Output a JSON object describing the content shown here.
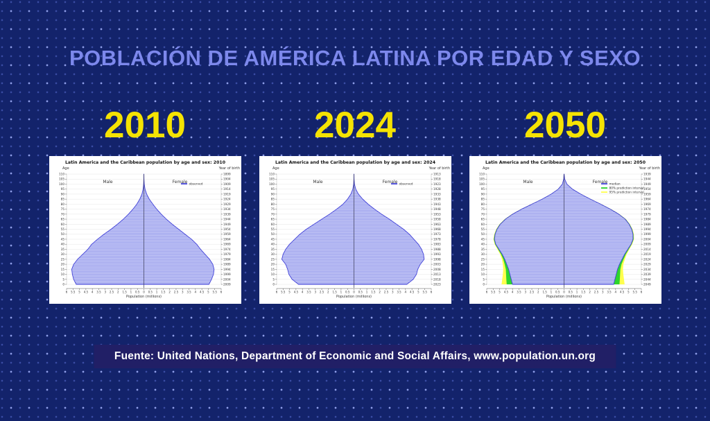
{
  "page": {
    "title": "POBLACIÓN DE AMÉRICA LATINA POR EDAD Y SEXO",
    "source": "Fuente: United Nations, Department of Economic and Social Affairs, www.population.un.org"
  },
  "colors": {
    "background": "#13236b",
    "title_text": "#7d88ec",
    "year_text": "#f5e303",
    "footer_bg": "#211f66",
    "median": "#4343d8",
    "fill": "#c9ccf6",
    "stripe": "#8a90ea",
    "pi80": "#2ed52e",
    "pi95": "#ffff4d"
  },
  "years": [
    "2010",
    "2024",
    "2050"
  ],
  "chart_data": [
    {
      "type": "area",
      "year": "2010",
      "title": "Latin America and the Caribbean population by age and sex: 2010",
      "xlabel": "Population (millions)",
      "left_axis_label": "Age",
      "right_axis_label": "Year of birth",
      "male_label": "Male",
      "female_label": "Female",
      "legend": [
        {
          "label": "observed",
          "color": "#4343d8"
        }
      ],
      "xlim": [
        -6,
        6
      ],
      "x_ticks": [
        "6",
        "5.5",
        "5",
        "4.5",
        "4",
        "3.5",
        "3",
        "2.5",
        "2",
        "1.5",
        "1",
        "0.5",
        "0",
        "0.5",
        "1",
        "1.5",
        "2",
        "2.5",
        "3",
        "3.5",
        "4",
        "4.5",
        "5",
        "5.5",
        "6"
      ],
      "ylim": [
        0,
        110
      ],
      "grid": true,
      "legend_position": "top-right",
      "ages": [
        0,
        5,
        10,
        15,
        20,
        25,
        30,
        35,
        40,
        45,
        50,
        55,
        60,
        65,
        70,
        75,
        80,
        85,
        90,
        95,
        100,
        105,
        110
      ],
      "birth_years": [
        2009,
        2004,
        1999,
        1994,
        1989,
        1984,
        1979,
        1974,
        1969,
        1964,
        1959,
        1954,
        1949,
        1944,
        1939,
        1934,
        1929,
        1924,
        1919,
        1914,
        1909,
        1904,
        1899
      ],
      "male": [
        5.25,
        5.45,
        5.55,
        5.6,
        5.45,
        5.15,
        4.75,
        4.35,
        4.05,
        3.6,
        3.1,
        2.55,
        2.05,
        1.6,
        1.2,
        0.85,
        0.55,
        0.32,
        0.15,
        0.06,
        0.02,
        0.005,
        0.001
      ],
      "female": [
        5.05,
        5.25,
        5.4,
        5.45,
        5.35,
        5.1,
        4.75,
        4.4,
        4.1,
        3.7,
        3.2,
        2.7,
        2.2,
        1.75,
        1.35,
        1.0,
        0.7,
        0.42,
        0.22,
        0.09,
        0.03,
        0.008,
        0.001
      ]
    },
    {
      "type": "area",
      "year": "2024",
      "title": "Latin America and the Caribbean population by age and sex: 2024",
      "xlabel": "Population (millions)",
      "left_axis_label": "Age",
      "right_axis_label": "Year of birth",
      "male_label": "Male",
      "female_label": "Female",
      "legend": [
        {
          "label": "observed",
          "color": "#4343d8"
        }
      ],
      "xlim": [
        -6,
        6
      ],
      "x_ticks": [
        "6",
        "5.5",
        "5",
        "4.5",
        "4",
        "3.5",
        "3",
        "2.5",
        "2",
        "1.5",
        "1",
        "0.5",
        "0",
        "0.5",
        "1",
        "1.5",
        "2",
        "2.5",
        "3",
        "3.5",
        "4",
        "4.5",
        "5",
        "5.5",
        "6"
      ],
      "ylim": [
        0,
        110
      ],
      "grid": true,
      "legend_position": "top-right",
      "ages": [
        0,
        5,
        10,
        15,
        20,
        25,
        30,
        35,
        40,
        45,
        50,
        55,
        60,
        65,
        70,
        75,
        80,
        85,
        90,
        95,
        100,
        105,
        110
      ],
      "birth_years": [
        2023,
        2018,
        2013,
        2008,
        2003,
        1998,
        1993,
        1988,
        1983,
        1978,
        1973,
        1968,
        1963,
        1958,
        1953,
        1948,
        1943,
        1938,
        1933,
        1928,
        1923,
        1918,
        1913
      ],
      "male": [
        4.3,
        4.8,
        5.05,
        5.15,
        5.3,
        5.6,
        5.5,
        5.3,
        5.0,
        4.6,
        4.2,
        3.7,
        3.1,
        2.5,
        1.9,
        1.35,
        0.85,
        0.5,
        0.24,
        0.09,
        0.025,
        0.005,
        0.001
      ],
      "female": [
        4.1,
        4.6,
        4.85,
        4.95,
        5.15,
        5.45,
        5.4,
        5.25,
        5.0,
        4.65,
        4.3,
        3.85,
        3.3,
        2.75,
        2.15,
        1.6,
        1.1,
        0.68,
        0.35,
        0.14,
        0.04,
        0.008,
        0.001
      ]
    },
    {
      "type": "area",
      "year": "2050",
      "title": "Latin America and the Caribbean population by age and sex: 2050",
      "xlabel": "Population (millions)",
      "left_axis_label": "Age",
      "right_axis_label": "Year of birth",
      "male_label": "Male",
      "female_label": "Female",
      "legend": [
        {
          "label": "median",
          "color": "#4343d8"
        },
        {
          "label": "80% prediction interval",
          "color": "#2ed52e"
        },
        {
          "label": "95% prediction interval",
          "color": "#ffff4d"
        }
      ],
      "xlim": [
        -6,
        6
      ],
      "x_ticks": [
        "6",
        "5.5",
        "5",
        "4.5",
        "4",
        "3.5",
        "3",
        "2.5",
        "2",
        "1.5",
        "1",
        "0.5",
        "0",
        "0.5",
        "1",
        "1.5",
        "2",
        "2.5",
        "3",
        "3.5",
        "4",
        "4.5",
        "5",
        "5.5",
        "6"
      ],
      "ylim": [
        0,
        110
      ],
      "grid": true,
      "legend_position": "top-right",
      "ages": [
        0,
        5,
        10,
        15,
        20,
        25,
        30,
        35,
        40,
        45,
        50,
        55,
        60,
        65,
        70,
        75,
        80,
        85,
        90,
        95,
        100,
        105,
        110
      ],
      "birth_years": [
        2049,
        2044,
        2039,
        2034,
        2029,
        2024,
        2019,
        2014,
        2009,
        2004,
        1999,
        1994,
        1989,
        1984,
        1979,
        1974,
        1969,
        1964,
        1959,
        1954,
        1949,
        1944,
        1939
      ],
      "male": [
        4.0,
        4.1,
        4.2,
        4.3,
        4.45,
        4.6,
        4.8,
        5.05,
        5.3,
        5.4,
        5.35,
        5.2,
        4.95,
        4.55,
        4.0,
        3.3,
        2.5,
        1.7,
        1.0,
        0.45,
        0.13,
        0.03,
        0.005
      ],
      "female": [
        3.85,
        3.95,
        4.05,
        4.15,
        4.3,
        4.5,
        4.7,
        4.95,
        5.2,
        5.35,
        5.35,
        5.25,
        5.05,
        4.75,
        4.25,
        3.6,
        2.85,
        2.05,
        1.3,
        0.65,
        0.22,
        0.05,
        0.008
      ],
      "pi80_extra": [
        0.45,
        0.38,
        0.3,
        0.22,
        0.16,
        0.12,
        0.09,
        0.07,
        0.05,
        0.05,
        0.04,
        0.04,
        0.04,
        0.04,
        0.04,
        0.04,
        0.03,
        0.03,
        0.02,
        0.02,
        0.01,
        0.005,
        0
      ],
      "pi95_extra": [
        0.85,
        0.7,
        0.55,
        0.42,
        0.3,
        0.22,
        0.16,
        0.12,
        0.09,
        0.08,
        0.07,
        0.07,
        0.06,
        0.06,
        0.06,
        0.06,
        0.05,
        0.04,
        0.03,
        0.03,
        0.02,
        0.01,
        0
      ]
    }
  ]
}
